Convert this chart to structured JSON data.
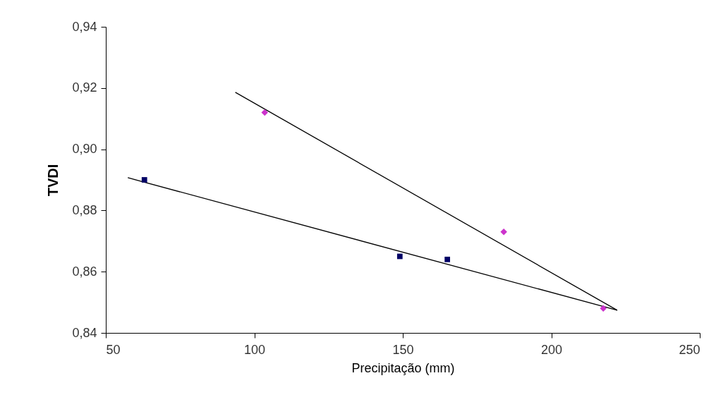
{
  "chart_data": {
    "type": "scatter",
    "xlabel": "Precipitação (mm)",
    "ylabel": "TVDI",
    "xlim": [
      50,
      250
    ],
    "xticks": [
      50,
      100,
      150,
      200,
      250
    ],
    "ylim": [
      0.84,
      0.94
    ],
    "yticks": [
      {
        "value": 0.84,
        "label": "0,84"
      },
      {
        "value": 0.86,
        "label": "0,86"
      },
      {
        "value": 0.88,
        "label": "0,88"
      },
      {
        "value": 0.9,
        "label": "0,90"
      },
      {
        "value": 0.92,
        "label": "0,92"
      },
      {
        "value": 0.94,
        "label": "0,94"
      }
    ],
    "grid": false,
    "marker": "square",
    "series": [
      {
        "type": "line",
        "color": "#000000",
        "x": [
          57.4,
          222.2
        ],
        "values": [
          0.8907,
          0.8474
        ],
        "marker": "none"
      },
      {
        "type": "line",
        "color": "#000000",
        "x": [
          93.6,
          222.2
        ],
        "values": [
          0.9186,
          0.8474
        ],
        "marker": "none"
      },
      {
        "color": "#000066",
        "x": [
          63,
          149,
          165
        ],
        "values": [
          0.89,
          0.865,
          0.864
        ]
      },
      {
        "color": "#cc33cc",
        "x": [
          103.5,
          184,
          217.5
        ],
        "values": [
          0.912,
          0.873,
          0.848
        ],
        "marker": "diamond"
      }
    ]
  }
}
